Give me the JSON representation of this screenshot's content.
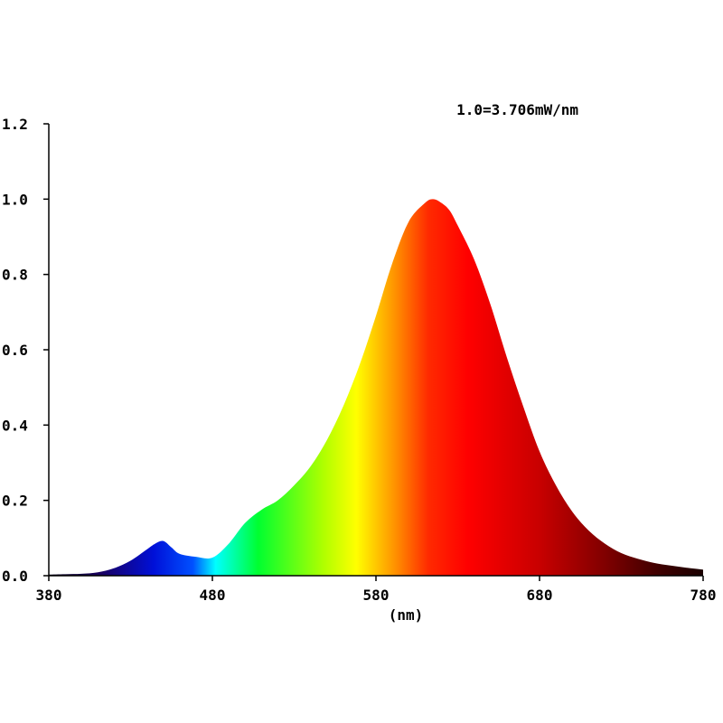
{
  "chart_data": {
    "type": "area",
    "annotation": "1.0=3.706mW/nm",
    "xlabel": "(nm)",
    "ylabel": "",
    "xlim": [
      380,
      780
    ],
    "ylim": [
      0,
      1.2
    ],
    "x_ticks": [
      380,
      480,
      580,
      680,
      780
    ],
    "x_tick_labels": [
      "380",
      "480",
      "580",
      "680",
      "780"
    ],
    "y_ticks": [
      0.0,
      0.2,
      0.4,
      0.6,
      0.8,
      1.0,
      1.2
    ],
    "y_tick_labels": [
      "0.0",
      "0.2",
      "0.4",
      "0.6",
      "0.8",
      "1.0",
      "1.2"
    ],
    "grid": false,
    "fill": "visible-spectrum gradient",
    "series": [
      {
        "x": [
          380,
          390,
          400,
          410,
          420,
          430,
          440,
          445,
          450,
          455,
          460,
          470,
          480,
          490,
          500,
          510,
          520,
          530,
          540,
          550,
          560,
          570,
          580,
          590,
          600,
          610,
          615,
          620,
          625,
          630,
          640,
          650,
          660,
          670,
          680,
          690,
          700,
          710,
          720,
          730,
          740,
          750,
          760,
          770,
          780
        ],
        "values": [
          0.003,
          0.004,
          0.005,
          0.009,
          0.02,
          0.04,
          0.07,
          0.085,
          0.092,
          0.075,
          0.058,
          0.05,
          0.048,
          0.085,
          0.14,
          0.175,
          0.2,
          0.24,
          0.29,
          0.36,
          0.45,
          0.56,
          0.69,
          0.83,
          0.94,
          0.99,
          1.0,
          0.99,
          0.97,
          0.93,
          0.84,
          0.72,
          0.58,
          0.45,
          0.33,
          0.24,
          0.17,
          0.12,
          0.085,
          0.06,
          0.045,
          0.034,
          0.027,
          0.021,
          0.016
        ]
      }
    ]
  }
}
